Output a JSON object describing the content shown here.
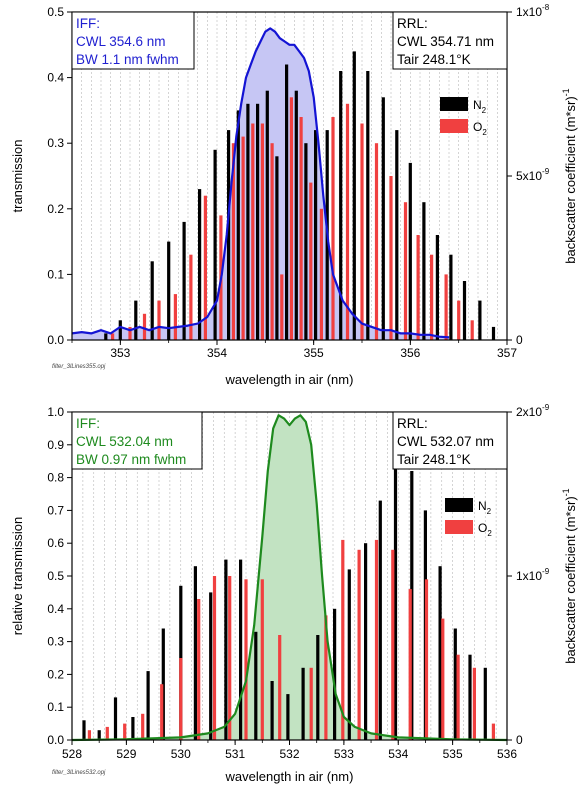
{
  "source_files": [
    "filter_3lLines355.opj",
    "filter_3lLines532.opj"
  ],
  "chart_data": [
    {
      "type": "bar",
      "xlabel": "wavelength in air (nm)",
      "ylabel": "transmission",
      "y2label": "backscatter coefficient (m*sr)",
      "y2label_sup": "-1",
      "xlim": [
        352.5,
        357
      ],
      "xticks": [
        353,
        354,
        355,
        356,
        357
      ],
      "ylim": [
        0,
        0.5
      ],
      "yticks": [
        0.0,
        0.1,
        0.2,
        0.3,
        0.4,
        0.5
      ],
      "ytick_labels": [
        "0.0",
        "0.1",
        "0.2",
        "0.3",
        "0.4",
        "0.5"
      ],
      "y2ticks": [
        {
          "base": "0",
          "exp": "",
          "frac": 0
        },
        {
          "base": "5x10",
          "exp": "-9",
          "frac": 0.5
        },
        {
          "base": "1x10",
          "exp": "-8",
          "frac": 1.0
        }
      ],
      "grid": true,
      "filter_box": {
        "lines": [
          "IFF:",
          "CWL 354.6 nm",
          "BW  1.1 nm fwhm"
        ],
        "color": "#1f1fd0"
      },
      "rrl_box": {
        "lines": [
          "RRL:",
          "CWL 354.71 nm",
          "Tair  248.1°K"
        ]
      },
      "legend": {
        "position": "top-right",
        "items": [
          {
            "name": "N",
            "sub": "2",
            "color": "#000000"
          },
          {
            "name": "O",
            "sub": "2",
            "color": "#f04040"
          }
        ]
      },
      "filter_curve": {
        "color": "#1414d4",
        "fill": "#c6c6f4",
        "x": [
          352.5,
          352.6,
          352.7,
          352.8,
          352.9,
          353.0,
          353.1,
          353.2,
          353.3,
          353.4,
          353.5,
          353.6,
          353.7,
          353.8,
          353.9,
          354.0,
          354.05,
          354.1,
          354.15,
          354.2,
          354.25,
          354.3,
          354.35,
          354.4,
          354.45,
          354.5,
          354.55,
          354.6,
          354.65,
          354.7,
          354.75,
          354.8,
          354.85,
          354.9,
          354.95,
          355.0,
          355.05,
          355.1,
          355.15,
          355.2,
          355.3,
          355.4,
          355.5,
          355.6,
          355.7,
          355.8,
          355.9,
          356.0,
          356.1,
          356.2,
          356.3,
          356.4
        ],
        "y": [
          0.01,
          0.012,
          0.01,
          0.015,
          0.01,
          0.02,
          0.015,
          0.02,
          0.015,
          0.02,
          0.018,
          0.02,
          0.022,
          0.025,
          0.035,
          0.06,
          0.1,
          0.16,
          0.24,
          0.31,
          0.36,
          0.4,
          0.42,
          0.44,
          0.455,
          0.47,
          0.475,
          0.47,
          0.46,
          0.455,
          0.45,
          0.45,
          0.44,
          0.43,
          0.41,
          0.37,
          0.3,
          0.22,
          0.15,
          0.1,
          0.06,
          0.04,
          0.025,
          0.02,
          0.015,
          0.015,
          0.01,
          0.01,
          0.008,
          0.008,
          0.005,
          0.004
        ]
      },
      "series": [
        {
          "name": "N2",
          "color": "#000000",
          "x": [
            352.85,
            353.0,
            353.16,
            353.33,
            353.5,
            353.66,
            353.82,
            353.98,
            354.12,
            354.22,
            354.32,
            354.42,
            354.52,
            354.62,
            354.72,
            354.82,
            354.92,
            355.02,
            355.14,
            355.28,
            355.42,
            355.56,
            355.72,
            355.86,
            356.0,
            356.14,
            356.28,
            356.42,
            356.56,
            356.72,
            356.86
          ],
          "y": [
            0.01,
            0.03,
            0.06,
            0.12,
            0.15,
            0.18,
            0.23,
            0.29,
            0.32,
            0.35,
            0.36,
            0.36,
            0.38,
            0.28,
            0.42,
            0.38,
            0.3,
            0.32,
            0.32,
            0.41,
            0.44,
            0.41,
            0.37,
            0.32,
            0.27,
            0.21,
            0.16,
            0.13,
            0.09,
            0.06,
            0.02
          ]
        },
        {
          "name": "O2",
          "color": "#f04040",
          "x": [
            352.92,
            353.1,
            353.25,
            353.4,
            353.57,
            353.73,
            353.88,
            354.04,
            354.17,
            354.27,
            354.37,
            354.47,
            354.57,
            354.67,
            354.77,
            354.87,
            354.97,
            355.08,
            355.2,
            355.35,
            355.5,
            355.65,
            355.8,
            355.95,
            356.08,
            356.22,
            356.37,
            356.5,
            356.64
          ],
          "y": [
            0.01,
            0.02,
            0.04,
            0.06,
            0.07,
            0.13,
            0.22,
            0.19,
            0.3,
            0.31,
            0.33,
            0.33,
            0.3,
            0.1,
            0.37,
            0.34,
            0.24,
            0.2,
            0.34,
            0.36,
            0.33,
            0.3,
            0.25,
            0.21,
            0.16,
            0.13,
            0.1,
            0.06,
            0.03
          ]
        }
      ]
    },
    {
      "type": "bar",
      "xlabel": "wavelength in air (nm)",
      "ylabel": "relative transmission",
      "y2label": "backscatter coefficient (m*sr)",
      "y2label_sup": "-1",
      "xlim": [
        528,
        536
      ],
      "xticks": [
        528,
        529,
        530,
        531,
        532,
        533,
        534,
        535,
        536
      ],
      "ylim": [
        0,
        1.0
      ],
      "yticks": [
        0.0,
        0.1,
        0.2,
        0.3,
        0.4,
        0.5,
        0.6,
        0.7,
        0.8,
        0.9,
        1.0
      ],
      "ytick_labels": [
        "0.0",
        "0.1",
        "0.2",
        "0.3",
        "0.4",
        "0.5",
        "0.6",
        "0.7",
        "0.8",
        "0.9",
        "1.0"
      ],
      "y2ticks": [
        {
          "base": "0",
          "exp": "",
          "frac": 0
        },
        {
          "base": "1x10",
          "exp": "-9",
          "frac": 0.5
        },
        {
          "base": "2x10",
          "exp": "-9",
          "frac": 1.0
        }
      ],
      "grid": true,
      "filter_box": {
        "lines": [
          "IFF:",
          "CWL 532.04 nm",
          "BW  0.97 nm fwhm"
        ],
        "color": "#1e8a1e"
      },
      "rrl_box": {
        "lines": [
          "RRL:",
          "CWL 532.07 nm",
          "Tair  248.1°K"
        ]
      },
      "legend": {
        "position": "top-right",
        "items": [
          {
            "name": "N",
            "sub": "2",
            "color": "#000000"
          },
          {
            "name": "O",
            "sub": "2",
            "color": "#f04040"
          }
        ]
      },
      "filter_curve": {
        "color": "#1e8a1e",
        "fill": "#c2e3c2",
        "x": [
          528.0,
          529.0,
          530.0,
          530.5,
          530.8,
          531.0,
          531.2,
          531.35,
          531.5,
          531.6,
          531.7,
          531.8,
          531.9,
          532.0,
          532.1,
          532.2,
          532.3,
          532.4,
          532.5,
          532.6,
          532.7,
          532.85,
          533.0,
          533.2,
          533.5,
          534.0,
          535.0,
          536.0
        ],
        "y": [
          0.0,
          0.002,
          0.008,
          0.02,
          0.04,
          0.08,
          0.18,
          0.35,
          0.62,
          0.82,
          0.95,
          0.99,
          0.98,
          0.96,
          0.98,
          0.99,
          0.97,
          0.9,
          0.72,
          0.5,
          0.3,
          0.14,
          0.07,
          0.04,
          0.02,
          0.008,
          0.002,
          0.0
        ]
      },
      "series": [
        {
          "name": "N2",
          "color": "#000000",
          "x": [
            528.22,
            528.5,
            528.8,
            529.12,
            529.4,
            529.68,
            530.0,
            530.27,
            530.55,
            530.83,
            531.1,
            531.38,
            531.68,
            531.97,
            532.25,
            532.52,
            532.83,
            533.1,
            533.4,
            533.67,
            533.95,
            534.25,
            534.5,
            534.77,
            535.05,
            535.32,
            535.6
          ],
          "y": [
            0.06,
            0.03,
            0.13,
            0.07,
            0.21,
            0.34,
            0.47,
            0.53,
            0.45,
            0.55,
            0.55,
            0.33,
            0.18,
            0.14,
            0.22,
            0.32,
            0.4,
            0.52,
            0.6,
            0.73,
            0.87,
            0.82,
            0.7,
            0.53,
            0.34,
            0.26,
            0.22
          ]
        },
        {
          "name": "O2",
          "color": "#f04040",
          "x": [
            528.32,
            528.65,
            528.97,
            529.3,
            529.65,
            530.0,
            530.33,
            530.62,
            530.9,
            531.2,
            531.5,
            531.82,
            532.4,
            532.67,
            532.98,
            533.28,
            533.6,
            533.9,
            534.22,
            534.52,
            534.82,
            535.1,
            535.4,
            535.75
          ],
          "y": [
            0.03,
            0.04,
            0.05,
            0.08,
            0.17,
            0.25,
            0.43,
            0.5,
            0.5,
            0.49,
            0.49,
            0.32,
            0.22,
            0.38,
            0.61,
            0.58,
            0.61,
            0.58,
            0.46,
            0.49,
            0.37,
            0.26,
            0.22,
            0.05
          ]
        }
      ]
    }
  ]
}
